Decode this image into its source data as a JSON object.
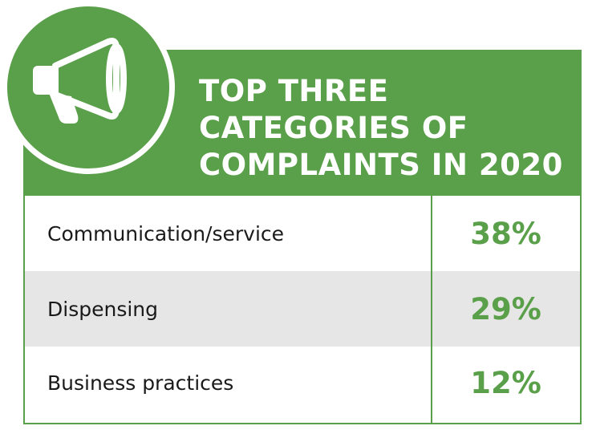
{
  "colors": {
    "accent": "#5a9f49",
    "alt_row": "#e6e6e6",
    "text": "#1a1a1a",
    "header_text": "#ffffff"
  },
  "icon": "megaphone-icon",
  "title_lines": [
    "TOP THREE",
    "CATEGORIES OF",
    "COMPLAINTS IN 2020"
  ],
  "chart_data": {
    "type": "table",
    "title": "TOP THREE CATEGORIES OF COMPLAINTS IN 2020",
    "categories": [
      "Communication/service",
      "Dispensing",
      "Business practices"
    ],
    "values": [
      38,
      29,
      12
    ],
    "value_labels": [
      "38%",
      "29%",
      "12%"
    ],
    "unit": "%"
  }
}
